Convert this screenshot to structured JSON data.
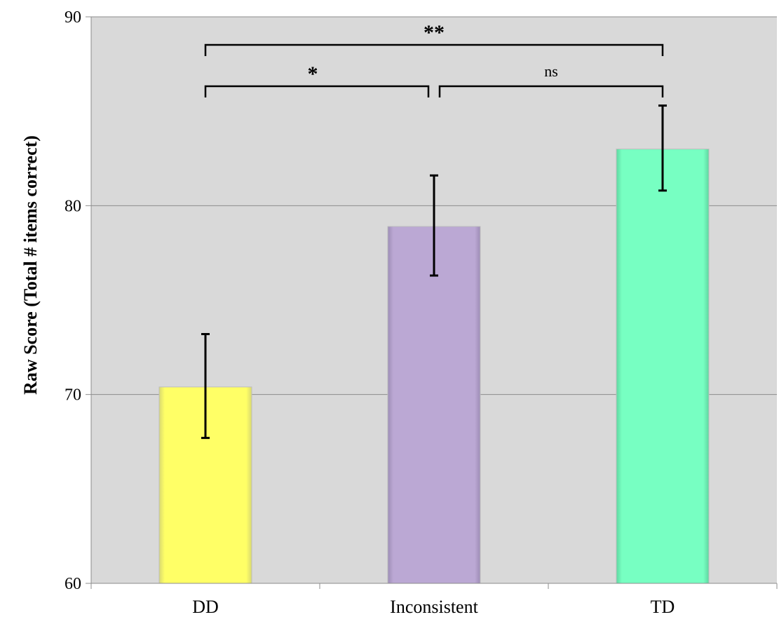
{
  "chart_data": {
    "type": "bar",
    "title": "",
    "xlabel": "",
    "ylabel": "Raw Score (Total # items correct)",
    "ylim": [
      60,
      90
    ],
    "yticks": [
      60,
      70,
      80,
      90
    ],
    "grid": true,
    "categories": [
      "DD",
      "Inconsistent",
      "TD"
    ],
    "values": [
      70.4,
      78.9,
      83.0
    ],
    "error_low": [
      67.7,
      76.3,
      80.8
    ],
    "error_high": [
      73.2,
      81.6,
      85.3
    ],
    "colors": [
      "#ffff66",
      "#bba8d4",
      "#77ffc2"
    ],
    "plot_background": "#d9d9d9",
    "significance": [
      {
        "from": "DD",
        "to": "TD",
        "label": "**"
      },
      {
        "from": "DD",
        "to": "Inconsistent",
        "label": "*"
      },
      {
        "from": "Inconsistent",
        "to": "TD",
        "label": "ns"
      }
    ]
  }
}
